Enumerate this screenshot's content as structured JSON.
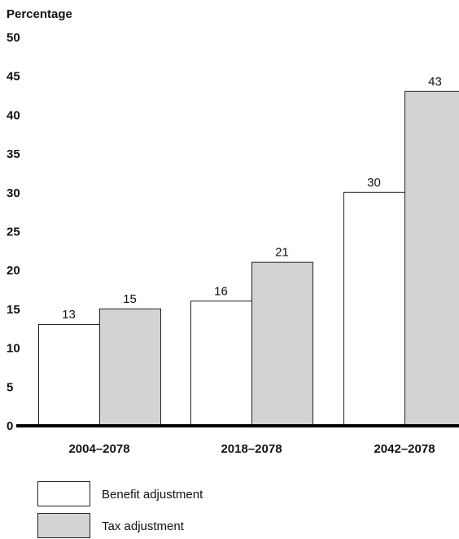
{
  "chart_data": {
    "type": "bar",
    "ylabel": "Percentage",
    "ylim": [
      0,
      50
    ],
    "yticks": [
      "0",
      "5",
      "10",
      "15",
      "20",
      "25",
      "30",
      "35",
      "40",
      "45",
      "50"
    ],
    "categories": [
      "2004–2078",
      "2018–2078",
      "2042–2078"
    ],
    "series": [
      {
        "name": "Benefit adjustment",
        "values": [
          13,
          16,
          30
        ],
        "color": "#ffffff"
      },
      {
        "name": "Tax adjustment",
        "values": [
          15,
          21,
          43
        ],
        "color": "#d3d3d3"
      }
    ],
    "legend_position": "bottom-left",
    "grid": false
  }
}
